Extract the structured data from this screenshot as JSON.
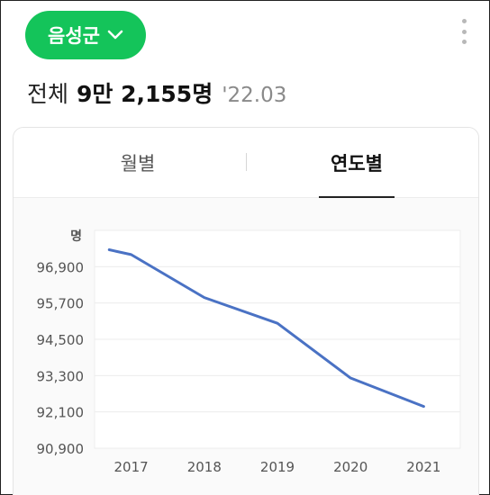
{
  "header": {
    "region_label": "음성군",
    "region_icon": "chevron-down-icon",
    "more_icon": "more-vertical-icon"
  },
  "summary": {
    "label": "전체",
    "count": "9만 2,155명",
    "period": "'22.03"
  },
  "tabs": [
    {
      "label": "월별",
      "active": false
    },
    {
      "label": "연도별",
      "active": true
    }
  ],
  "colors": {
    "accent": "#14c45a",
    "line": "#4a72c4"
  },
  "chart_data": {
    "type": "line",
    "unit_label": "명",
    "categories": [
      "2017",
      "2018",
      "2019",
      "2020",
      "2021"
    ],
    "x": [
      "2016.7",
      "2017",
      "2018",
      "2019",
      "2020",
      "2021"
    ],
    "series": [
      {
        "values": [
          97460,
          97300,
          95880,
          95030,
          93220,
          92280
        ]
      }
    ],
    "yticks": [
      "96,900",
      "95,700",
      "94,500",
      "93,300",
      "92,100",
      "90,900"
    ],
    "ylim": [
      90900,
      98100
    ],
    "grid": true
  }
}
